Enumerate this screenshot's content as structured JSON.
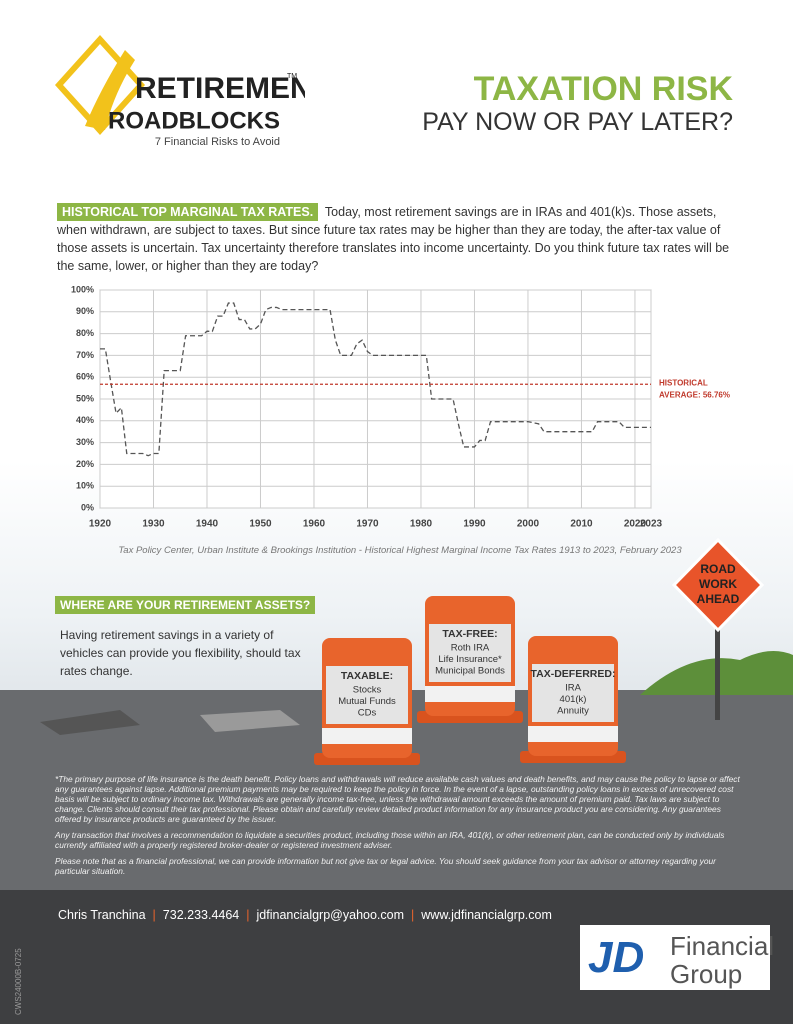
{
  "logo": {
    "line1": "RETIREMENT",
    "trademark": "TM",
    "line2": "ROADBLOCKS",
    "tagline": "7 Financial Risks to Avoid"
  },
  "header": {
    "title": "TAXATION RISK",
    "subtitle": "PAY NOW OR PAY LATER?"
  },
  "intro": {
    "heading": "HISTORICAL TOP MARGINAL TAX RATES.",
    "text": "Today, most retirement savings are in IRAs and 401(k)s. Those assets, when withdrawn, are subject to taxes. But since future tax rates may be higher than they are today, the after-tax value of those assets is uncertain. Tax uncertainty therefore translates into income uncertainty. Do you think future tax rates will be the same, lower, or higher than they are today?"
  },
  "chart_data": {
    "type": "line",
    "x": [
      1920,
      1921,
      1922,
      1923,
      1924,
      1925,
      1926,
      1927,
      1928,
      1929,
      1930,
      1931,
      1932,
      1933,
      1934,
      1935,
      1936,
      1937,
      1938,
      1939,
      1940,
      1941,
      1942,
      1943,
      1944,
      1945,
      1946,
      1947,
      1948,
      1949,
      1950,
      1951,
      1952,
      1953,
      1954,
      1955,
      1956,
      1957,
      1958,
      1959,
      1960,
      1961,
      1962,
      1963,
      1964,
      1965,
      1966,
      1967,
      1968,
      1969,
      1970,
      1971,
      1972,
      1973,
      1974,
      1975,
      1976,
      1977,
      1978,
      1979,
      1980,
      1981,
      1982,
      1983,
      1984,
      1985,
      1986,
      1987,
      1988,
      1989,
      1990,
      1991,
      1992,
      1993,
      1994,
      1995,
      1996,
      1997,
      1998,
      1999,
      2000,
      2001,
      2002,
      2003,
      2004,
      2005,
      2006,
      2007,
      2008,
      2009,
      2010,
      2011,
      2012,
      2013,
      2014,
      2015,
      2016,
      2017,
      2018,
      2019,
      2020,
      2021,
      2022,
      2023
    ],
    "series": [
      {
        "color": "#555555",
        "values": [
          73,
          73,
          58,
          43.5,
          46,
          25,
          25,
          25,
          25,
          24,
          25,
          25,
          63,
          63,
          63,
          63,
          79,
          79,
          79,
          79,
          81.1,
          81,
          88,
          88,
          94,
          94,
          86.45,
          86.45,
          82.13,
          82.13,
          84.36,
          91,
          92,
          92,
          91,
          91,
          91,
          91,
          91,
          91,
          91,
          91,
          91,
          91,
          77,
          70,
          70,
          70,
          75.25,
          77,
          71.75,
          70,
          70,
          70,
          70,
          70,
          70,
          70,
          70,
          70,
          70,
          70,
          50,
          50,
          50,
          50,
          50,
          38.5,
          28,
          28,
          28,
          31,
          31,
          39.6,
          39.6,
          39.6,
          39.6,
          39.6,
          39.6,
          39.6,
          39.6,
          39.1,
          38.6,
          35,
          35,
          35,
          35,
          35,
          35,
          35,
          35,
          35,
          35,
          39.6,
          39.6,
          39.6,
          39.6,
          39.6,
          37,
          37,
          37,
          37,
          37,
          37
        ]
      }
    ],
    "xlim": [
      1920,
      2023
    ],
    "xticks": [
      1920,
      1930,
      1940,
      1950,
      1960,
      1970,
      1980,
      1990,
      2000,
      2010,
      2020,
      2023
    ],
    "ylim": [
      0,
      100
    ],
    "yticks": [
      {
        "value": 0,
        "label": "0%"
      },
      {
        "value": 10,
        "label": "10%"
      },
      {
        "value": 20,
        "label": "20%"
      },
      {
        "value": 30,
        "label": "30%"
      },
      {
        "value": 40,
        "label": "40%"
      },
      {
        "value": 50,
        "label": "50%"
      },
      {
        "value": 60,
        "label": "60%"
      },
      {
        "value": 70,
        "label": "70%"
      },
      {
        "value": 80,
        "label": "80%"
      },
      {
        "value": 90,
        "label": "90%"
      },
      {
        "value": 100,
        "label": "100%"
      }
    ],
    "grid": true,
    "average": {
      "value": 56.76,
      "color": "#c0392b",
      "label_lines": [
        "HISTORICAL",
        "AVERAGE: 56.76%"
      ]
    },
    "source": "Tax Policy Center, Urban Institute & Brookings Institution - Historical Highest Marginal Income Tax Rates 1913 to 2023, February 2023"
  },
  "assets": {
    "heading": "WHERE ARE YOUR RETIREMENT ASSETS?",
    "text": "Having retirement savings in a variety of vehicles can provide you flexibility, should tax rates change.",
    "barrels": [
      {
        "title": "TAXABLE:",
        "items": [
          "Stocks",
          "Mutual Funds",
          "CDs"
        ]
      },
      {
        "title": "TAX-FREE:",
        "items": [
          "Roth IRA",
          "Life Insurance*",
          "Municipal Bonds"
        ]
      },
      {
        "title": "TAX-DEFERRED:",
        "items": [
          "IRA",
          "401(k)",
          "Annuity"
        ]
      }
    ],
    "sign": [
      "ROAD",
      "WORK",
      "AHEAD"
    ]
  },
  "disclaimers": [
    "*The primary purpose of life insurance is the death benefit. Policy loans and withdrawals will reduce available cash values and death benefits, and may cause the policy to lapse or affect any guarantees against lapse. Additional premium payments may be required to keep the policy in force. In the event of a lapse, outstanding policy loans in excess of unrecovered cost basis will be subject to ordinary income tax. Withdrawals are generally income tax-free, unless the withdrawal amount exceeds the amount of premium paid. Tax laws are subject to change. Clients should consult their tax professional. Please obtain and carefully review detailed product information for any insurance product you are considering. Any guarantees offered by insurance products are guaranteed by the issuer.",
    "Any transaction that involves a recommendation to liquidate a securities product, including those within an IRA, 401(k), or other retirement plan, can be conducted only by individuals currently affiliated with a properly registered broker-dealer or registered investment adviser.",
    "Please note that as a financial professional, we can provide information but not give tax or legal advice. You should seek guidance from your tax advisor or attorney regarding your particular situation."
  ],
  "footer": {
    "contacts": [
      "Chris Tranchina",
      "732.233.4464",
      "jdfinancialgrp@yahoo.com",
      "www.jdfinancialgrp.com"
    ],
    "brand": {
      "mark": "JD",
      "line1": "Financial",
      "line2": "Group"
    },
    "code": "CWS24000B-0725"
  }
}
